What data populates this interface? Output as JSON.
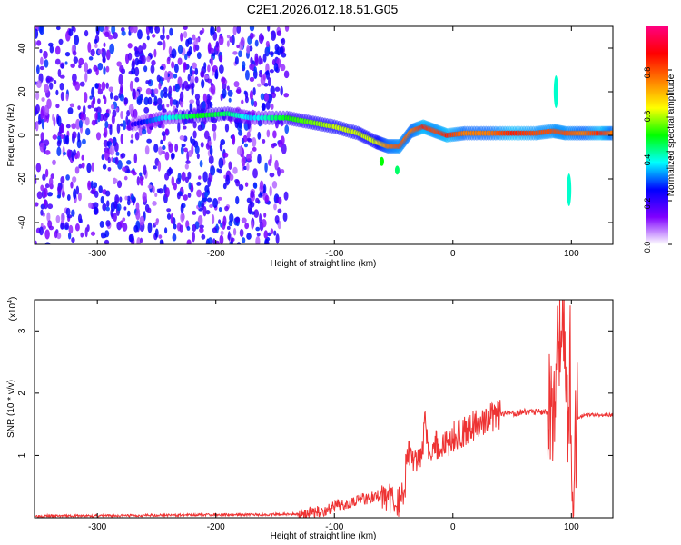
{
  "figure": {
    "title": "C2E1.2026.012.18.51.G05"
  },
  "colors": {
    "snr_line": "#ee3333",
    "grid": "#aaaaaa",
    "axis": "#000000"
  },
  "chart_data": [
    {
      "type": "heatmap",
      "xlabel": "Height of straight line (km)",
      "ylabel": "Frequency (Hz)",
      "xlim": [
        -353,
        135
      ],
      "ylim": [
        -50,
        50
      ],
      "x_ticks": [
        -300,
        -200,
        -100,
        0,
        100
      ],
      "x_tick_labels": [
        "-300",
        "-200",
        "-100",
        "0",
        "100"
      ],
      "y_ticks": [
        -40,
        -20,
        0,
        20,
        40
      ],
      "y_tick_labels": [
        "-40",
        "-20",
        "0",
        "20",
        "40"
      ],
      "colorbar": {
        "label": "Normalized spectral amplitude",
        "range": [
          0,
          1
        ],
        "ticks": [
          0.0,
          0.2,
          0.4,
          0.6,
          0.8
        ],
        "tick_labels": [
          "0.0",
          "0.2",
          "0.4",
          "0.6",
          "0.8"
        ],
        "colormap": [
          "#ffffff",
          "#7f00ff",
          "#0000ff",
          "#00ffff",
          "#00ff00",
          "#ffff00",
          "#ff7f00",
          "#ff0000",
          "#ff0080"
        ]
      },
      "noise_band": {
        "x_range": [
          -353,
          -140
        ],
        "freq_range": [
          -50,
          50
        ],
        "level": 0.25
      },
      "ridge": [
        {
          "x": -270,
          "freq": 5,
          "amp": 0.2
        },
        {
          "x": -245,
          "freq": 8,
          "amp": 0.35
        },
        {
          "x": -215,
          "freq": 9,
          "amp": 0.5
        },
        {
          "x": -190,
          "freq": 10,
          "amp": 0.45
        },
        {
          "x": -170,
          "freq": 8,
          "amp": 0.35
        },
        {
          "x": -140,
          "freq": 8,
          "amp": 0.5
        },
        {
          "x": -120,
          "freq": 6,
          "amp": 0.55
        },
        {
          "x": -100,
          "freq": 4,
          "amp": 0.6
        },
        {
          "x": -80,
          "freq": 1,
          "amp": 0.6
        },
        {
          "x": -65,
          "freq": -3,
          "amp": 0.6
        },
        {
          "x": -55,
          "freq": -5,
          "amp": 0.75
        },
        {
          "x": -45,
          "freq": -5,
          "amp": 0.8
        },
        {
          "x": -35,
          "freq": 2,
          "amp": 0.75
        },
        {
          "x": -25,
          "freq": 4,
          "amp": 0.85
        },
        {
          "x": -15,
          "freq": 2,
          "amp": 0.8
        },
        {
          "x": -5,
          "freq": 0,
          "amp": 0.85
        },
        {
          "x": 10,
          "freq": 1,
          "amp": 0.75
        },
        {
          "x": 30,
          "freq": 1,
          "amp": 0.75
        },
        {
          "x": 50,
          "freq": 1,
          "amp": 0.85
        },
        {
          "x": 70,
          "freq": 1,
          "amp": 0.8
        },
        {
          "x": 85,
          "freq": 2,
          "amp": 0.8
        },
        {
          "x": 95,
          "freq": 1,
          "amp": 0.8
        },
        {
          "x": 110,
          "freq": 1,
          "amp": 0.75
        },
        {
          "x": 125,
          "freq": 1,
          "amp": 0.85
        },
        {
          "x": 135,
          "freq": 1,
          "amp": 0.75
        }
      ],
      "features": [
        {
          "label": "dip",
          "x": -60,
          "freq": -12,
          "amp": 0.5
        },
        {
          "label": "dip2",
          "x": -47,
          "freq": -16,
          "amp": 0.45
        },
        {
          "label": "streak_up",
          "x": 87,
          "freq": 20,
          "amp": 0.4
        },
        {
          "label": "streak_down",
          "x": 98,
          "freq": -25,
          "amp": 0.4
        }
      ]
    },
    {
      "type": "line",
      "xlabel": "Height of straight line (km)",
      "ylabel": "SNR (10 * v/v)",
      "y_multiplier": "(x10^4)",
      "xlim": [
        -353,
        135
      ],
      "ylim": [
        0,
        3.5
      ],
      "x_ticks": [
        -300,
        -200,
        -100,
        0,
        100
      ],
      "x_tick_labels": [
        "-300",
        "-200",
        "-100",
        "0",
        "100"
      ],
      "y_ticks": [
        1,
        2,
        3
      ],
      "y_tick_labels": [
        "1",
        "2",
        "3"
      ],
      "series": [
        {
          "x": [
            -353,
            -300,
            -250,
            -200,
            -160,
            -130,
            -110,
            -95,
            -80,
            -70,
            -60,
            -50,
            -45,
            -40,
            -30,
            -25,
            -20,
            -10,
            0,
            10,
            20,
            40,
            60,
            70,
            80,
            85,
            90,
            95,
            98,
            100,
            105,
            110,
            120,
            135
          ],
          "y": [
            0.03,
            0.03,
            0.04,
            0.05,
            0.05,
            0.06,
            0.1,
            0.2,
            0.3,
            0.32,
            0.35,
            0.3,
            0.25,
            0.5,
            0.9,
            1.2,
            0.9,
            1.1,
            1.3,
            1.4,
            1.5,
            1.65,
            1.7,
            1.7,
            1.7,
            1.8,
            2.6,
            2.2,
            1.2,
            0.4,
            1.6,
            1.65,
            1.65,
            1.65
          ]
        }
      ],
      "peaks": [
        {
          "x": -40,
          "y": 1.05
        },
        {
          "x": -24,
          "y": 1.85
        },
        {
          "x": -17,
          "y": 1.25
        },
        {
          "x": 88,
          "y": 2.8
        },
        {
          "x": 93,
          "y": 3.5
        },
        {
          "x": 99,
          "y": 3.0
        }
      ]
    }
  ]
}
